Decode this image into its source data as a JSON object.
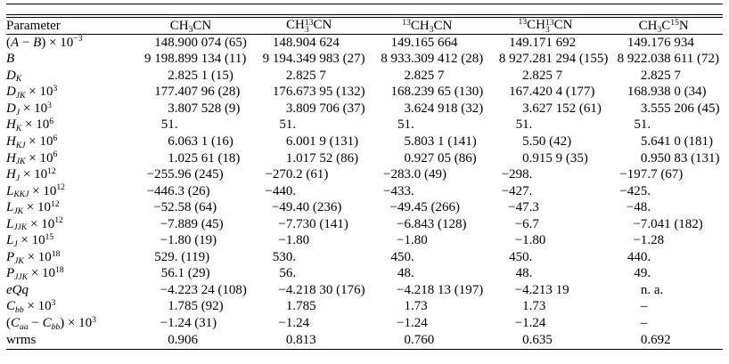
{
  "page": {
    "background_color": "#ffffff",
    "text_color": "#000000",
    "description": "Journal-style table of spectroscopic parameters for methyl cyanide isotopologues"
  },
  "table": {
    "columns": [
      {
        "key": "parameter",
        "label_plain": "Parameter",
        "label_tokens": [
          {
            "t": "Parameter"
          }
        ]
      },
      {
        "key": "ch3cn",
        "label_plain": "CH3CN",
        "label_tokens": [
          {
            "t": "CH"
          },
          {
            "sub": "3"
          },
          {
            "t": "CN"
          }
        ]
      },
      {
        "key": "ch3-13cn",
        "label_plain": "CH3-13CN",
        "label_tokens": [
          {
            "t": "CH"
          },
          {
            "stack": [
              "13",
              "3"
            ]
          },
          {
            "t": "CN"
          }
        ]
      },
      {
        "key": "13ch3cn",
        "label_plain": "13CH3CN",
        "label_tokens": [
          {
            "sup": "13"
          },
          {
            "t": "CH"
          },
          {
            "sub": "3"
          },
          {
            "t": "CN"
          }
        ]
      },
      {
        "key": "13ch3-13cn",
        "label_plain": "13CH3-13CN",
        "label_tokens": [
          {
            "sup": "13"
          },
          {
            "t": "CH"
          },
          {
            "stack": [
              "13",
              "3"
            ]
          },
          {
            "t": "CN"
          }
        ]
      },
      {
        "key": "ch3c15n",
        "label_plain": "CH3C15N",
        "label_tokens": [
          {
            "t": "CH"
          },
          {
            "sub": "3"
          },
          {
            "t": "C"
          },
          {
            "sup": "15"
          },
          {
            "t": "N"
          }
        ]
      }
    ],
    "rows": [
      {
        "parameter_plain": "(A - B) x 10^-3",
        "parameter_tokens": [
          {
            "t": "("
          },
          {
            "i": "A"
          },
          {
            "t": " − "
          },
          {
            "i": "B"
          },
          {
            "t": ") × 10"
          },
          {
            "sup": "−3"
          }
        ],
        "values": [
          "148.900 074 (65)",
          "148.904 624",
          "149.165 664",
          "149.171 692",
          "149.176 934"
        ]
      },
      {
        "parameter_plain": "B",
        "parameter_tokens": [
          {
            "i": "B"
          }
        ],
        "values": [
          "9 198.899 134 (11)",
          "9 194.349 983 (27)",
          "8 933.309 412 (28)",
          "8 927.281 294 (155)",
          "8 922.038 611 (72)"
        ]
      },
      {
        "parameter_plain": "D_K",
        "parameter_tokens": [
          {
            "i": "D"
          },
          {
            "subi": "K"
          }
        ],
        "values": [
          "2.825 1 (15)",
          "2.825 7",
          "2.825 7",
          "2.825 7",
          "2.825 7"
        ]
      },
      {
        "parameter_plain": "D_JK x 10^3",
        "parameter_tokens": [
          {
            "i": "D"
          },
          {
            "subi": "JK"
          },
          {
            "t": " × 10"
          },
          {
            "sup": "3"
          }
        ],
        "values": [
          "177.407 96 (28)",
          "176.673 95 (132)",
          "168.239 65 (130)",
          "167.420 4 (177)",
          "168.938 0 (34)"
        ]
      },
      {
        "parameter_plain": "D_J x 10^3",
        "parameter_tokens": [
          {
            "i": "D"
          },
          {
            "subi": "J"
          },
          {
            "t": " × 10"
          },
          {
            "sup": "3"
          }
        ],
        "values": [
          "3.807 528 (9)",
          "3.809 706 (37)",
          "3.624 918 (32)",
          "3.627 152 (61)",
          "3.555 206 (45)"
        ]
      },
      {
        "parameter_plain": "H_K x 10^6",
        "parameter_tokens": [
          {
            "i": "H"
          },
          {
            "subi": "K"
          },
          {
            "t": " × 10"
          },
          {
            "sup": "6"
          }
        ],
        "values": [
          "51.",
          "51.",
          "51.",
          "51.",
          "51."
        ]
      },
      {
        "parameter_plain": "H_KJ x 10^6",
        "parameter_tokens": [
          {
            "i": "H"
          },
          {
            "subi": "KJ"
          },
          {
            "t": " × 10"
          },
          {
            "sup": "6"
          }
        ],
        "values": [
          "6.063 1 (16)",
          "6.001 9 (131)",
          "5.803 1 (141)",
          "5.50 (42)",
          "5.641 0 (181)"
        ]
      },
      {
        "parameter_plain": "H_JK x 10^6",
        "parameter_tokens": [
          {
            "i": "H"
          },
          {
            "subi": "JK"
          },
          {
            "t": " × 10"
          },
          {
            "sup": "6"
          }
        ],
        "values": [
          "1.025 61 (18)",
          "1.017 52 (86)",
          "0.927 05 (86)",
          "0.915 9 (35)",
          "0.950 83 (131)"
        ]
      },
      {
        "parameter_plain": "H_J x 10^12",
        "parameter_tokens": [
          {
            "i": "H"
          },
          {
            "subi": "J"
          },
          {
            "t": " × 10"
          },
          {
            "sup": "12"
          }
        ],
        "values": [
          "−255.96 (245)",
          "−270.2 (61)",
          "−283.0 (49)",
          "−298.",
          "−197.7 (67)"
        ]
      },
      {
        "parameter_plain": "L_KKJ x 10^12",
        "parameter_tokens": [
          {
            "i": "L"
          },
          {
            "subi": "KKJ"
          },
          {
            "t": " × 10"
          },
          {
            "sup": "12"
          }
        ],
        "values": [
          "−446.3 (26)",
          "−440.",
          "−433.",
          "−427.",
          "−425."
        ]
      },
      {
        "parameter_plain": "L_JK x 10^12",
        "parameter_tokens": [
          {
            "i": "L"
          },
          {
            "subi": "JK"
          },
          {
            "t": " × 10"
          },
          {
            "sup": "12"
          }
        ],
        "values": [
          "−52.58 (64)",
          "−49.40 (236)",
          "−49.45 (266)",
          "−47.3",
          "−48."
        ]
      },
      {
        "parameter_plain": "L_JJK x 10^12",
        "parameter_tokens": [
          {
            "i": "L"
          },
          {
            "subi": "JJK"
          },
          {
            "t": " × 10"
          },
          {
            "sup": "12"
          }
        ],
        "values": [
          "−7.889 (45)",
          "−7.730 (141)",
          "−6.843 (128)",
          "−6.7",
          "−7.041 (182)"
        ]
      },
      {
        "parameter_plain": "L_J x 10^15",
        "parameter_tokens": [
          {
            "i": "L"
          },
          {
            "subi": "J"
          },
          {
            "t": " × 10"
          },
          {
            "sup": "15"
          }
        ],
        "values": [
          "−1.80 (19)",
          "−1.80",
          "−1.80",
          "−1.80",
          "−1.28"
        ]
      },
      {
        "parameter_plain": "P_JK x 10^18",
        "parameter_tokens": [
          {
            "i": "P"
          },
          {
            "subi": "JK"
          },
          {
            "t": " × 10"
          },
          {
            "sup": "18"
          }
        ],
        "values": [
          "529. (119)",
          "530.",
          "450.",
          "450.",
          "440."
        ]
      },
      {
        "parameter_plain": "P_JJK x 10^18",
        "parameter_tokens": [
          {
            "i": "P"
          },
          {
            "subi": "JJK"
          },
          {
            "t": " × 10"
          },
          {
            "sup": "18"
          }
        ],
        "values": [
          "56.1 (29)",
          "56.",
          "48.",
          "48.",
          "49."
        ]
      },
      {
        "parameter_plain": "eQq",
        "parameter_tokens": [
          {
            "i": "eQq"
          }
        ],
        "values": [
          "−4.223 24 (108)",
          "−4.218 30 (176)",
          "−4.218 13 (197)",
          "−4.213 19",
          "n. a."
        ]
      },
      {
        "parameter_plain": "C_bb x 10^3",
        "parameter_tokens": [
          {
            "i": "C"
          },
          {
            "subi": "bb"
          },
          {
            "t": " × 10"
          },
          {
            "sup": "3"
          }
        ],
        "values": [
          "1.785 (92)",
          "1.785",
          "1.73",
          "1.73",
          "–"
        ]
      },
      {
        "parameter_plain": "(C_aa - C_bb) x 10^3",
        "parameter_tokens": [
          {
            "t": "("
          },
          {
            "i": "C"
          },
          {
            "subi": "aa"
          },
          {
            "t": " − "
          },
          {
            "i": "C"
          },
          {
            "subi": "bb"
          },
          {
            "t": ") × 10"
          },
          {
            "sup": "3"
          }
        ],
        "values": [
          "−1.24 (31)",
          "−1.24",
          "−1.24",
          "−1.24",
          "–"
        ]
      },
      {
        "parameter_plain": "wrms",
        "parameter_tokens": [
          {
            "t": "wrms"
          }
        ],
        "values": [
          "0.906",
          "0.813",
          "0.760",
          "0.635",
          "0.692"
        ]
      }
    ]
  }
}
